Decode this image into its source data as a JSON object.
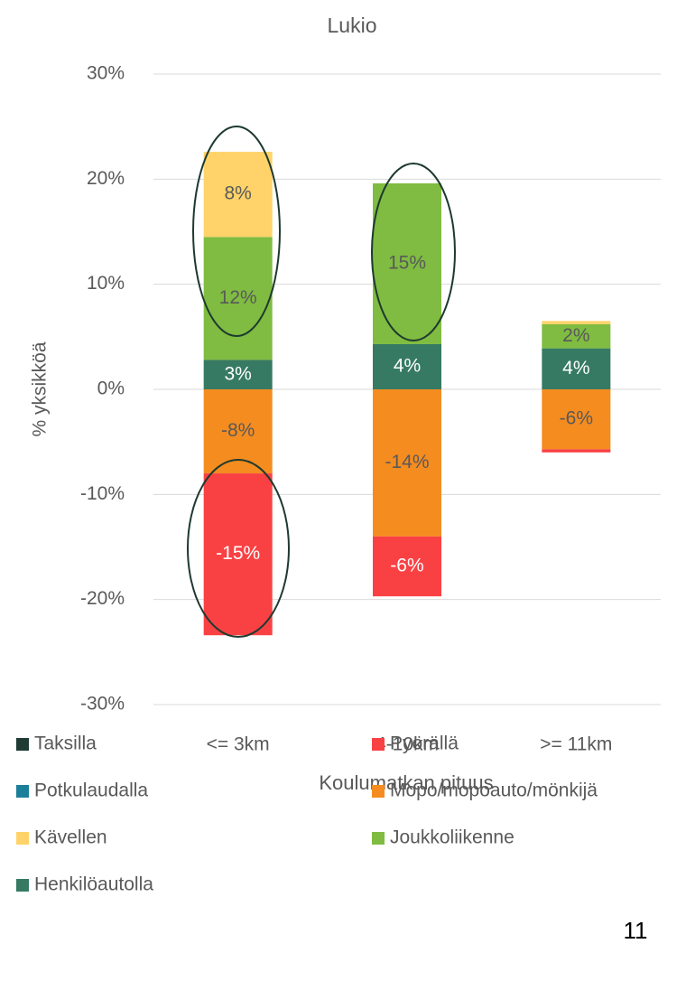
{
  "chart_data": {
    "type": "stacked_bar",
    "title": "Lukio",
    "x_label": "Koulumatkan pituus",
    "y_label": "% yksikköä",
    "categories": [
      "<= 3km",
      "4-10km",
      ">= 11km"
    ],
    "series": [
      {
        "name": "Taksilla",
        "color": "#1f3b33",
        "values": [
          0,
          0,
          0
        ],
        "value_labels": [
          null,
          null,
          null
        ]
      },
      {
        "name": "Pyörällä",
        "color": "#f94144",
        "values": [
          -15.4,
          -5.7,
          -0.3
        ],
        "value_labels": [
          "-15%",
          "-6%",
          null
        ]
      },
      {
        "name": "Potkulaudalla",
        "color": "#1b7f99",
        "values": [
          0,
          0,
          0
        ],
        "value_labels": [
          null,
          null,
          null
        ]
      },
      {
        "name": "Mopo/mopoauto/mönkijä",
        "color": "#f48c20",
        "values": [
          -8.0,
          -14.0,
          -5.7
        ],
        "value_labels": [
          "-8%",
          "-14%",
          "-6%"
        ]
      },
      {
        "name": "Kävellen",
        "color": "#ffd369",
        "values": [
          8.1,
          0,
          0.3
        ],
        "value_labels": [
          "8%",
          null,
          null
        ]
      },
      {
        "name": "Joukkoliikenne",
        "color": "#7fbc41",
        "values": [
          11.7,
          15.3,
          2.3
        ],
        "value_labels": [
          "12%",
          "15%",
          "2%"
        ]
      },
      {
        "name": "Henkilöautolla",
        "color": "#367a63",
        "values": [
          2.8,
          4.3,
          3.9
        ],
        "value_labels": [
          "3%",
          "4%",
          "4%"
        ]
      }
    ],
    "ylim": [
      -30,
      30
    ],
    "yticks": [
      {
        "value": -30,
        "label": "-30%"
      },
      {
        "value": -20,
        "label": "-20%"
      },
      {
        "value": -10,
        "label": "-10%"
      },
      {
        "value": 0,
        "label": "0%"
      },
      {
        "value": 10,
        "label": "10%"
      },
      {
        "value": 20,
        "label": "20%"
      },
      {
        "value": 30,
        "label": "30%"
      }
    ],
    "grid": true,
    "legend": "bottom"
  },
  "page_number": "11"
}
